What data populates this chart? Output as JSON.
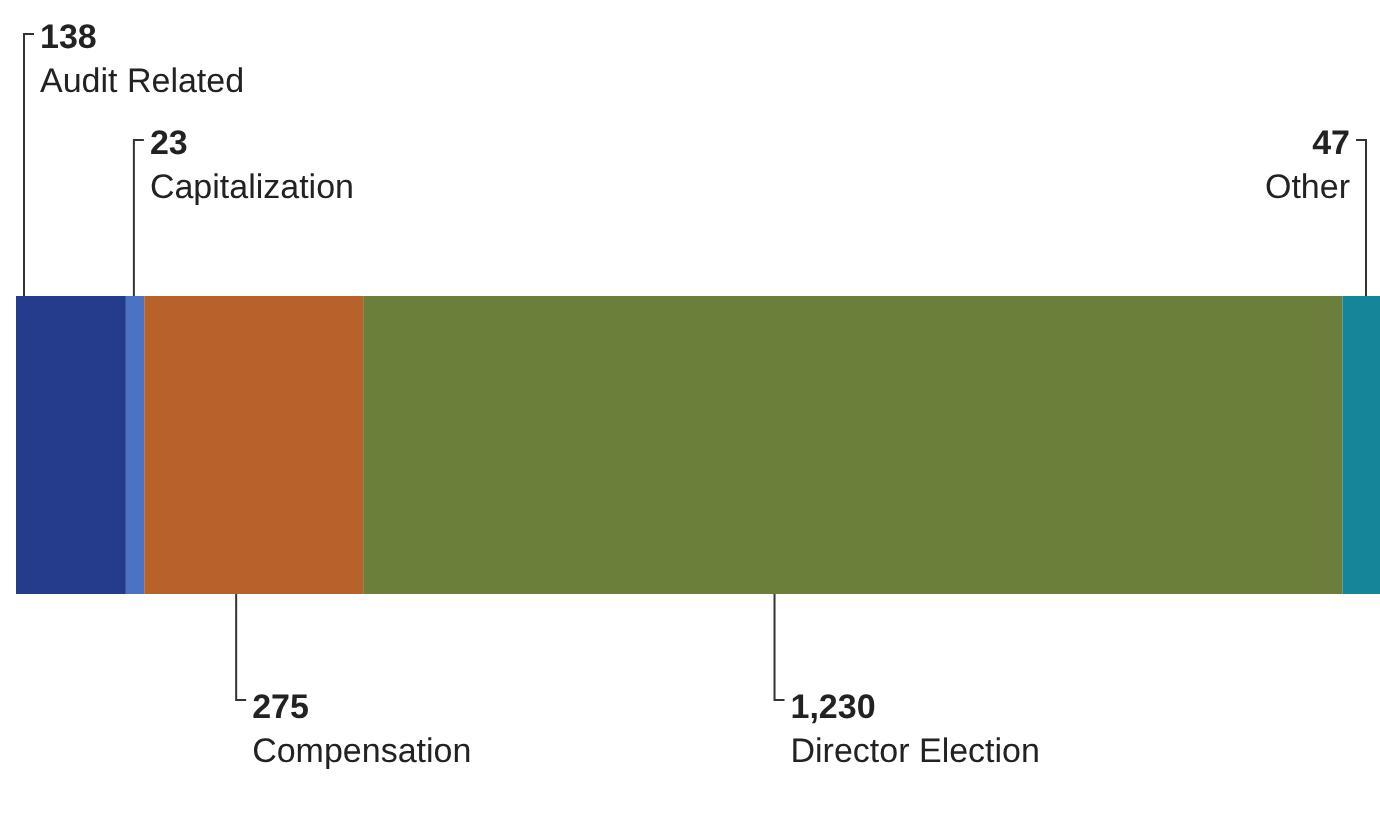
{
  "chart_data": {
    "type": "bar",
    "orientation": "horizontal",
    "stacked": true,
    "categories": [
      null
    ],
    "series": [
      {
        "name": "Audit Related",
        "color": "#253c8c",
        "values": [
          138
        ],
        "value_labels": [
          "138"
        ]
      },
      {
        "name": "Capitalization",
        "color": "#4a73c4",
        "values": [
          23
        ],
        "value_labels": [
          "23"
        ]
      },
      {
        "name": "Compensation",
        "color": "#b8612a",
        "values": [
          275
        ],
        "value_labels": [
          "275"
        ]
      },
      {
        "name": "Director Election",
        "color": "#6b7f3a",
        "values": [
          1230
        ],
        "value_labels": [
          "1,230"
        ]
      },
      {
        "name": "Other",
        "color": "#13869a",
        "values": [
          47
        ],
        "value_labels": [
          "47"
        ]
      }
    ]
  }
}
